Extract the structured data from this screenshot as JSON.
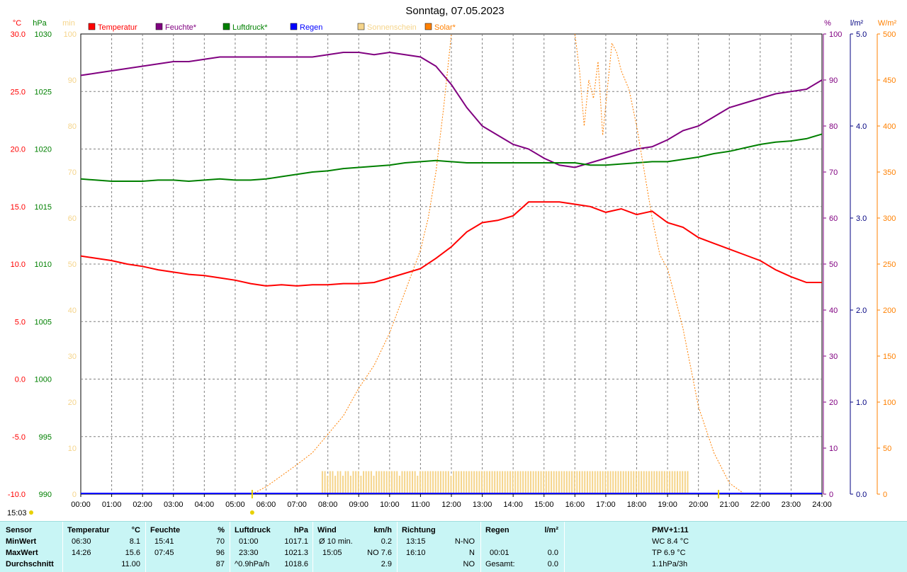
{
  "chart_data": {
    "type": "line",
    "title": "Sonntag, 07.05.2023",
    "xlabel": "",
    "x_ticks": [
      "00:00",
      "01:00",
      "02:00",
      "03:00",
      "04:00",
      "05:00",
      "06:00",
      "07:00",
      "08:00",
      "09:00",
      "10:00",
      "11:00",
      "12:00",
      "13:00",
      "14:00",
      "15:00",
      "16:00",
      "17:00",
      "18:00",
      "19:00",
      "20:00",
      "21:00",
      "22:00",
      "23:00",
      "24:00"
    ],
    "xlim": [
      0,
      24
    ],
    "grid": true,
    "legend_position": "top",
    "axes": {
      "temp": {
        "unit": "°C",
        "range": [
          -10,
          30
        ],
        "ticks": [
          "30.0",
          "25.0",
          "20.0",
          "15.0",
          "10.0",
          "5.0",
          "0.0",
          "-5.0",
          "-10.0"
        ],
        "color": "#ff0000"
      },
      "pressure": {
        "unit": "hPa",
        "range": [
          990,
          1030
        ],
        "ticks": [
          "1030",
          "1025",
          "1020",
          "1015",
          "1010",
          "1005",
          "1000",
          "995",
          "990"
        ],
        "color": "#008000"
      },
      "sunshine": {
        "unit": "min",
        "range": [
          0,
          100
        ],
        "ticks": [
          "100",
          "90",
          "80",
          "70",
          "60",
          "50",
          "40",
          "30",
          "20",
          "10",
          "0"
        ],
        "color": "#f5d48a"
      },
      "humidity": {
        "unit": "%",
        "range": [
          0,
          100
        ],
        "ticks": [
          "100",
          "90",
          "80",
          "70",
          "60",
          "50",
          "40",
          "30",
          "20",
          "10",
          "0"
        ],
        "color": "#800080"
      },
      "rain": {
        "unit": "l/m²",
        "range": [
          0,
          5
        ],
        "ticks": [
          "5.0",
          "4.0",
          "3.0",
          "2.0",
          "1.0",
          "0.0"
        ],
        "color": "#000080"
      },
      "solar": {
        "unit": "W/m²",
        "range": [
          0,
          500
        ],
        "ticks": [
          "500",
          "450",
          "400",
          "350",
          "300",
          "250",
          "200",
          "150",
          "100",
          "50",
          "0"
        ],
        "color": "#ff8000"
      }
    },
    "legend": [
      {
        "label": "Temperatur",
        "color": "#ff0000"
      },
      {
        "label": "Feuchte*",
        "color": "#800080"
      },
      {
        "label": "Luftdruck*",
        "color": "#008000"
      },
      {
        "label": "Regen",
        "color": "#0000ff"
      },
      {
        "label": "Sonnenschein",
        "color": "#f5d48a"
      },
      {
        "label": "Solar*",
        "color": "#ff8000"
      }
    ],
    "series": [
      {
        "name": "Temperatur",
        "axis": "temp",
        "color": "#ff0000",
        "x": [
          0,
          0.5,
          1,
          1.5,
          2,
          2.5,
          3,
          3.5,
          4,
          4.5,
          5,
          5.5,
          6,
          6.5,
          7,
          7.5,
          8,
          8.5,
          9,
          9.5,
          10,
          10.5,
          11,
          11.5,
          12,
          12.5,
          13,
          13.5,
          14,
          14.5,
          15,
          15.5,
          16,
          16.5,
          17,
          17.5,
          18,
          18.5,
          19,
          19.5,
          20,
          20.5,
          21,
          21.5,
          22,
          22.5,
          23,
          23.5,
          24
        ],
        "y": [
          10.7,
          10.5,
          10.3,
          10.0,
          9.8,
          9.5,
          9.3,
          9.1,
          9.0,
          8.8,
          8.6,
          8.3,
          8.1,
          8.2,
          8.1,
          8.2,
          8.2,
          8.3,
          8.3,
          8.4,
          8.8,
          9.2,
          9.6,
          10.5,
          11.5,
          12.8,
          13.6,
          13.8,
          14.2,
          15.4,
          15.4,
          15.4,
          15.2,
          15.0,
          14.5,
          14.8,
          14.3,
          14.6,
          13.6,
          13.2,
          12.3,
          11.8,
          11.3,
          10.8,
          10.3,
          9.5,
          8.9,
          8.4,
          8.4
        ]
      },
      {
        "name": "Feuchte*",
        "axis": "humidity",
        "color": "#800080",
        "x": [
          0,
          0.5,
          1,
          1.5,
          2,
          2.5,
          3,
          3.5,
          4,
          4.5,
          5,
          5.5,
          6,
          6.5,
          7,
          7.5,
          8,
          8.5,
          9,
          9.5,
          10,
          10.5,
          11,
          11.5,
          12,
          12.5,
          13,
          13.5,
          14,
          14.5,
          15,
          15.5,
          16,
          16.5,
          17,
          17.5,
          18,
          18.5,
          19,
          19.5,
          20,
          20.5,
          21,
          21.5,
          22,
          22.5,
          23,
          23.5,
          24
        ],
        "y": [
          91,
          91.5,
          92,
          92.5,
          93,
          93.5,
          94,
          94,
          94.5,
          95,
          95,
          95,
          95,
          95,
          95,
          95,
          95.5,
          96,
          96,
          95.5,
          96,
          95.5,
          95,
          93,
          89,
          84,
          80,
          78,
          76,
          75,
          73,
          71.5,
          71,
          72,
          73,
          74,
          75,
          75.5,
          77,
          79,
          80,
          82,
          84,
          85,
          86,
          87,
          87.5,
          88,
          90
        ]
      },
      {
        "name": "Luftdruck*",
        "axis": "pressure",
        "color": "#008000",
        "x": [
          0,
          0.5,
          1,
          1.5,
          2,
          2.5,
          3,
          3.5,
          4,
          4.5,
          5,
          5.5,
          6,
          6.5,
          7,
          7.5,
          8,
          8.5,
          9,
          9.5,
          10,
          10.5,
          11,
          11.5,
          12,
          12.5,
          13,
          13.5,
          14,
          14.5,
          15,
          15.5,
          16,
          16.5,
          17,
          17.5,
          18,
          18.5,
          19,
          19.5,
          20,
          20.5,
          21,
          21.5,
          22,
          22.5,
          23,
          23.5,
          24
        ],
        "y": [
          1017.4,
          1017.3,
          1017.2,
          1017.2,
          1017.2,
          1017.3,
          1017.3,
          1017.2,
          1017.3,
          1017.4,
          1017.3,
          1017.3,
          1017.4,
          1017.6,
          1017.8,
          1018.0,
          1018.1,
          1018.3,
          1018.4,
          1018.5,
          1018.6,
          1018.8,
          1018.9,
          1019.0,
          1018.9,
          1018.8,
          1018.8,
          1018.8,
          1018.8,
          1018.8,
          1018.8,
          1018.8,
          1018.8,
          1018.6,
          1018.6,
          1018.7,
          1018.8,
          1018.9,
          1018.9,
          1019.1,
          1019.3,
          1019.6,
          1019.8,
          1020.1,
          1020.4,
          1020.6,
          1020.7,
          1020.9,
          1021.3
        ]
      },
      {
        "name": "Solar*",
        "axis": "solar",
        "color": "#ff8000",
        "x": [
          5.55,
          6,
          6.5,
          7,
          7.5,
          8,
          8.5,
          9,
          9.5,
          10,
          10.5,
          11,
          11.25,
          11.5,
          11.75,
          12,
          12.5,
          13,
          13.5,
          14,
          14.5,
          15,
          15.5,
          15.75,
          16,
          16.15,
          16.3,
          16.45,
          16.6,
          16.75,
          16.9,
          17.05,
          17.2,
          17.35,
          17.5,
          17.75,
          18,
          18.25,
          18.5,
          18.75,
          19,
          19.5,
          20,
          20.5,
          21,
          21.5
        ],
        "y": [
          0,
          8,
          20,
          32,
          45,
          65,
          85,
          115,
          140,
          175,
          220,
          265,
          300,
          350,
          420,
          500,
          null,
          null,
          null,
          null,
          null,
          null,
          null,
          null,
          500,
          460,
          400,
          450,
          430,
          470,
          390,
          440,
          490,
          480,
          460,
          440,
          400,
          350,
          300,
          260,
          245,
          180,
          95,
          45,
          12,
          0
        ]
      }
    ],
    "sunshine_bars": {
      "axis": "sunshine",
      "color": "#f5d48a",
      "start": 7.8,
      "end": 19.65,
      "step": 0.0833,
      "values": [
        5,
        5,
        4,
        5,
        5,
        4,
        5,
        5,
        4,
        5,
        5,
        4,
        5,
        5,
        5,
        4,
        5,
        5,
        5,
        5,
        4,
        5,
        5,
        5,
        5,
        5,
        5,
        5,
        5,
        5,
        4,
        5,
        5,
        5,
        5,
        5,
        5,
        4,
        5,
        5,
        5,
        5,
        5,
        5,
        5,
        5,
        5,
        5,
        5,
        5,
        4,
        5,
        5,
        5,
        5,
        5,
        5,
        5,
        5,
        5,
        5,
        5,
        5,
        5,
        5,
        5,
        5,
        5,
        5,
        5,
        5,
        5,
        5,
        5,
        5,
        5,
        5,
        5,
        5,
        5,
        5,
        5,
        5,
        5,
        5,
        5,
        5,
        5,
        5,
        5,
        5,
        5,
        5,
        5,
        5,
        5,
        5,
        5,
        5,
        5,
        5,
        5,
        5,
        5,
        5,
        5,
        5,
        5,
        5,
        5,
        5,
        5,
        5,
        5,
        5,
        5,
        5,
        5,
        5,
        5,
        5,
        5,
        5,
        5,
        5,
        5,
        5,
        5,
        5,
        5,
        5,
        5,
        5,
        5,
        5,
        5,
        5,
        5,
        5,
        5,
        5,
        5,
        5,
        5
      ]
    },
    "rain": []
  },
  "labels": {
    "start_time": "15:03"
  },
  "stats": {
    "headers": {
      "sensor": "Sensor",
      "temp": "Temperatur",
      "temp_unit": "°C",
      "hum": "Feuchte",
      "hum_unit": "%",
      "press": "Luftdruck",
      "press_unit": "hPa",
      "wind": "Wind",
      "wind_unit": "km/h",
      "dir": "Richtung",
      "rain": "Regen",
      "rain_unit": "l/m²",
      "pmv": "PMV+1:11"
    },
    "rows": {
      "min": {
        "label": "MinWert",
        "temp_time": "06:30",
        "temp_val": "8.1",
        "hum_time": "15:41",
        "hum_val": "70",
        "press_time": "01:00",
        "press_val": "1017.1",
        "wind_time": "Ø 10 min.",
        "wind_val": "0.2",
        "dir_time": "13:15",
        "dir_val": "N-NO",
        "rain_time": "",
        "rain_val": "",
        "pmv": "WC 8.4 °C"
      },
      "max": {
        "label": "MaxWert",
        "temp_time": "14:26",
        "temp_val": "15.6",
        "hum_time": "07:45",
        "hum_val": "96",
        "press_time": "23:30",
        "press_val": "1021.3",
        "wind_time": "15:05",
        "wind_val": "NO 7.6",
        "dir_time": "16:10",
        "dir_val": "N",
        "rain_time": "00:01",
        "rain_val": "0.0",
        "pmv": "TP 6.9 °C"
      },
      "avg": {
        "label": "Durchschnitt",
        "temp_time": "",
        "temp_val": "11.00",
        "hum_time": "",
        "hum_val": "87",
        "press_time": "^0.9hPa/h",
        "press_val": "1018.6",
        "wind_time": "",
        "wind_val": "2.9",
        "dir_time": "",
        "dir_val": "NO",
        "rain_time": "Gesamt:",
        "rain_val": "0.0",
        "pmv": "1.1hPa/3h"
      }
    }
  }
}
